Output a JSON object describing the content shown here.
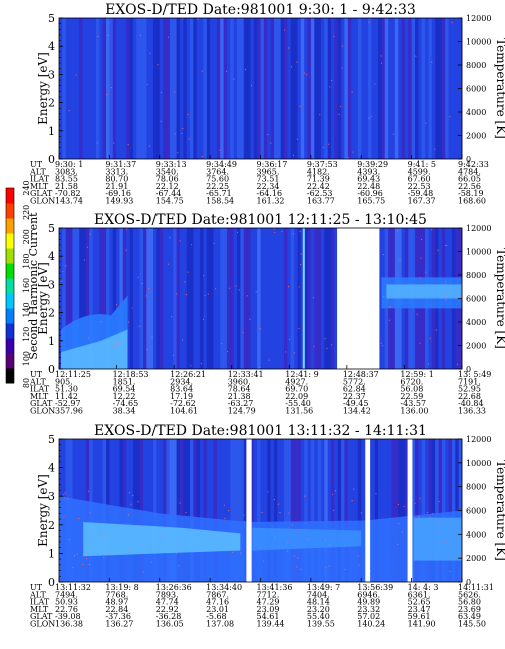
{
  "colorbar": {
    "label": "Second Harmonic Current",
    "ticks": [
      "80",
      "100",
      "120",
      "140",
      "160",
      "180",
      "200",
      "220",
      "240"
    ],
    "colors": [
      "#000000",
      "#5a0078",
      "#3a00b0",
      "#1030d8",
      "#0080ff",
      "#00c8ff",
      "#00e0a0",
      "#00e000",
      "#a0e000",
      "#ffff00",
      "#ffa000",
      "#ff4000",
      "#ff0000"
    ]
  },
  "chart_data": [
    {
      "type": "heatmap",
      "title": "EXOS-D/TED   Date:981001   9:30: 1 - 9:42:33",
      "ylabel": "Energy [eV]",
      "y2label": "Temperature [K]",
      "ylim": [
        0,
        5
      ],
      "y2lim": [
        0,
        12000
      ],
      "yticks": [
        "0",
        "1",
        "2",
        "3",
        "4",
        "5"
      ],
      "y2ticks": [
        "0",
        "2000",
        "4000",
        "6000",
        "8000",
        "10000",
        "12000"
      ],
      "gaps": [],
      "band": false,
      "table": {
        "row_labels": [
          "UT",
          "ALT",
          "ILAT",
          "MLT",
          "GLAT",
          "GLON"
        ],
        "columns": [
          [
            "9:30: 1",
            "3083.",
            "83.55",
            "21.58",
            "-70.82",
            "143.74"
          ],
          [
            "9:31:37",
            "3313.",
            "80.70",
            "21.91",
            "-69.16",
            "149.93"
          ],
          [
            "9:33:13",
            "3540.",
            "78.06",
            "22.12",
            "-67.44",
            "154.75"
          ],
          [
            "9:34:49",
            "3764.",
            "75.60",
            "22.25",
            "-65.71",
            "158.54"
          ],
          [
            "9:36:17",
            "3965.",
            "73.51",
            "22.34",
            "-64.16",
            "161.32"
          ],
          [
            "9:37:53",
            "4182.",
            "71.39",
            "22.42",
            "-62.53",
            "163.77"
          ],
          [
            "9:39:29",
            "4393.",
            "69.43",
            "22.48",
            "-60.96",
            "165.75"
          ],
          [
            "9:41: 5",
            "4599.",
            "67.60",
            "22.53",
            "-59.48",
            "167.37"
          ],
          [
            "9:42:33",
            "4784.",
            "66.05",
            "22.56",
            "-58.19",
            "168.60"
          ]
        ]
      }
    },
    {
      "type": "heatmap",
      "title": "EXOS-D/TED   Date:981001   12:11:25 - 13:10:45",
      "ylabel": "Energy [eV]",
      "y2label": "Temperature [K]",
      "ylim": [
        0,
        5
      ],
      "y2lim": [
        0,
        12000
      ],
      "yticks": [
        "0",
        "1",
        "2",
        "3",
        "4",
        "5"
      ],
      "y2ticks": [
        "0",
        "2000",
        "4000",
        "6000",
        "8000",
        "10000",
        "12000"
      ],
      "gaps": [
        [
          0.69,
          0.795
        ]
      ],
      "band": true,
      "table": {
        "row_labels": [
          "UT",
          "ALT",
          "ILAT",
          "MLT",
          "GLAT",
          "GLON"
        ],
        "columns": [
          [
            "12:11:25",
            "905.",
            "51.30",
            "11.42",
            "-52.97",
            "357.96"
          ],
          [
            "12:18:53",
            "1851.",
            "69.54",
            "12.22",
            "-74.65",
            "38.34"
          ],
          [
            "12:26:21",
            "2934.",
            "83.64",
            "17.19",
            "-72.62",
            "104.61"
          ],
          [
            "12:33:41",
            "3960.",
            "78.64",
            "21.38",
            "-63.27",
            "124.79"
          ],
          [
            "12:41: 9",
            "4927.",
            "69.70",
            "22.09",
            "-55.40",
            "131.56"
          ],
          [
            "12:48:37",
            "5772.",
            "62.84",
            "22.37",
            "-49.45",
            "134.42"
          ],
          [
            "12:59: 1",
            "6720.",
            "56.08",
            "22.59",
            "-43.57",
            "136.00"
          ],
          [
            "13: 5:49",
            "7191.",
            "52.95",
            "22.68",
            "-40.84",
            "136.33"
          ]
        ]
      }
    },
    {
      "type": "heatmap",
      "title": "EXOS-D/TED   Date:981001   13:11:32 - 14:11:31",
      "ylabel": "Energy [eV]",
      "y2label": "Temperature [K]",
      "ylim": [
        0,
        5
      ],
      "y2lim": [
        0,
        12000
      ],
      "yticks": [
        "0",
        "1",
        "2",
        "3",
        "4",
        "5"
      ],
      "y2ticks": [
        "0",
        "2000",
        "4000",
        "6000",
        "8000",
        "10000",
        "12000"
      ],
      "gaps": [
        [
          0.465,
          0.478
        ],
        [
          0.76,
          0.772
        ],
        [
          0.865,
          0.877
        ]
      ],
      "band": true,
      "table": {
        "row_labels": [
          "UT",
          "ALT",
          "ILAT",
          "MLT",
          "GLAT",
          "GLON"
        ],
        "columns": [
          [
            "13:11:32",
            "7494.",
            "50.93",
            "22.76",
            "-39.08",
            "136.38"
          ],
          [
            "13:19: 8",
            "7768.",
            "48.97",
            "22.84",
            "-37.36",
            "136.27"
          ],
          [
            "13:26:36",
            "7893.",
            "47.74",
            "22.92",
            "-36.28",
            "136.05"
          ],
          [
            "13:34:40",
            "7867.",
            "47.16",
            "23.01",
            "-5.68",
            "137.08"
          ],
          [
            "13:41:36",
            "7712.",
            "47.29",
            "23.09",
            "54.61",
            "139.44"
          ],
          [
            "13:49: 7",
            "7404.",
            "48.14",
            "23.20",
            "55.40",
            "139.55"
          ],
          [
            "13:56:39",
            "6946.",
            "49.89",
            "23.32",
            "57.02",
            "140.24"
          ],
          [
            "14: 4: 3",
            "6361.",
            "52.65",
            "23.47",
            "59.61",
            "141.90"
          ],
          [
            "14:11:31",
            "5626.",
            "56.80",
            "23.69",
            "63.49",
            "145.50"
          ]
        ]
      }
    }
  ]
}
